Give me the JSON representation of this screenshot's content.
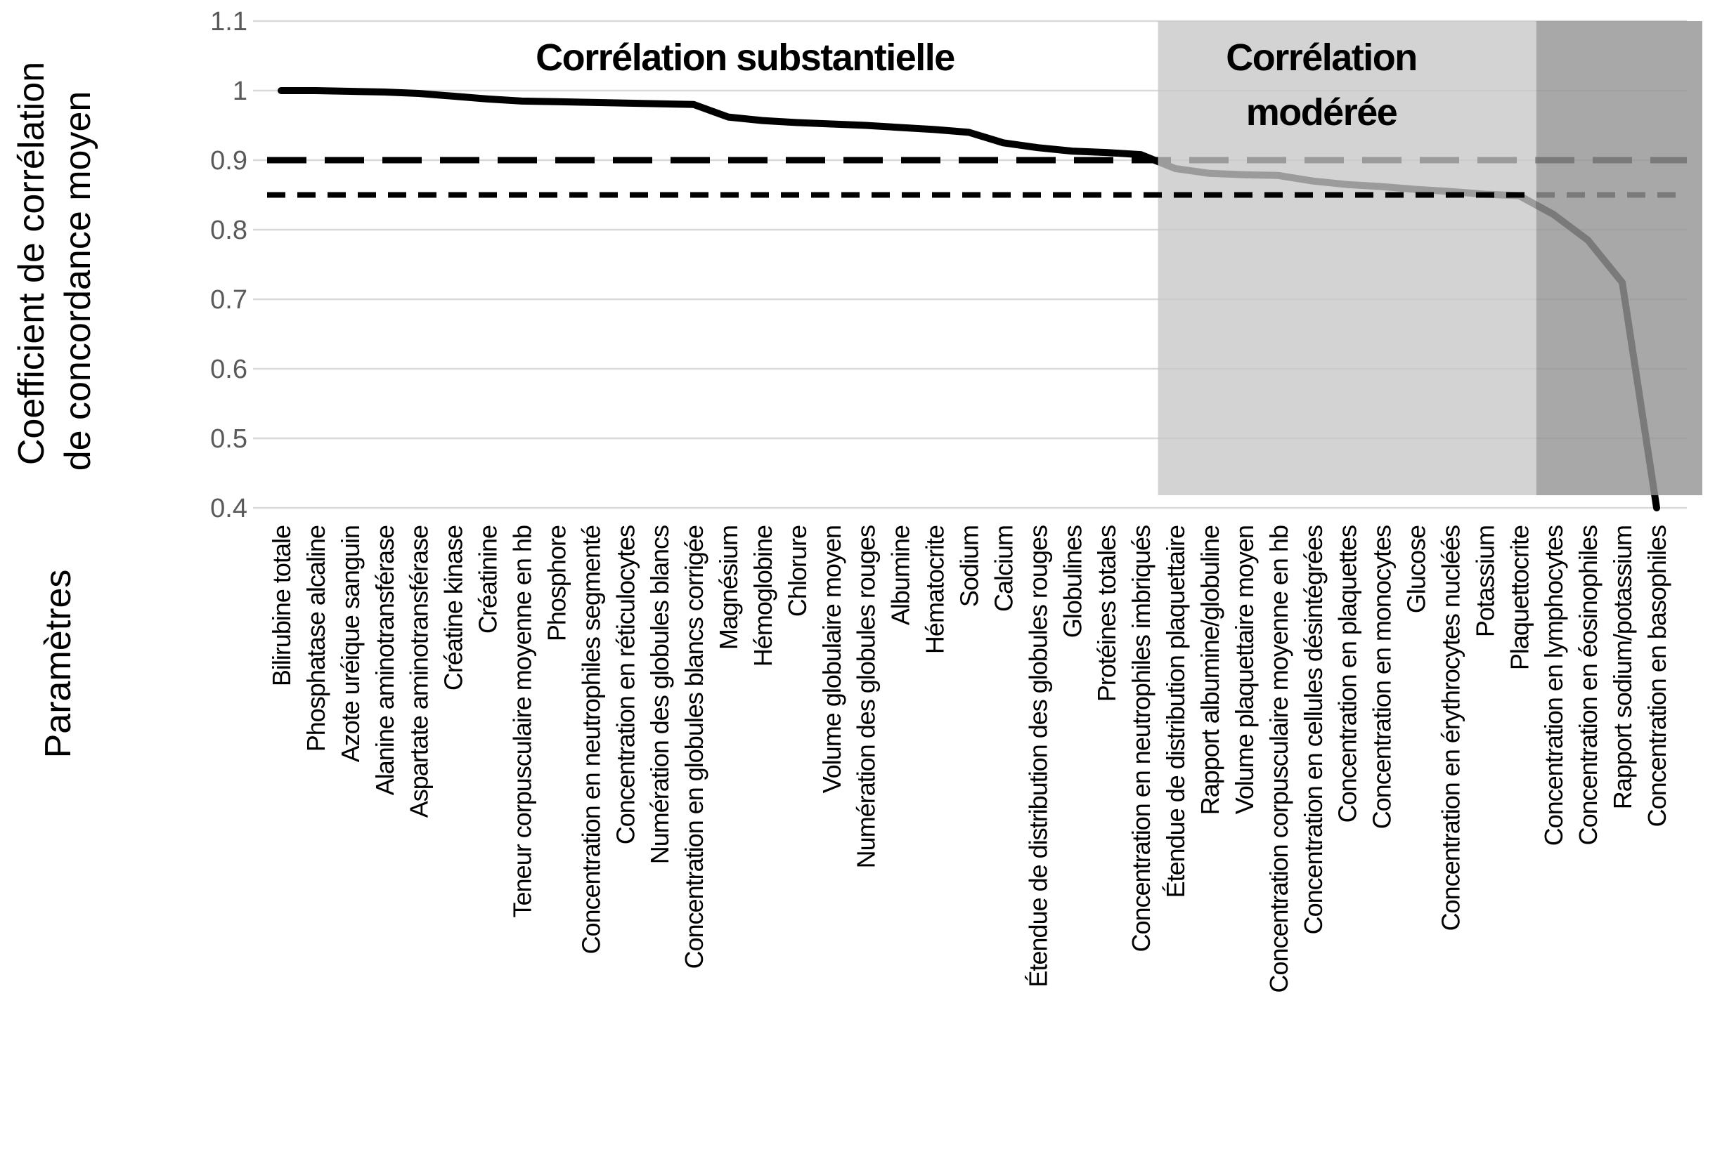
{
  "chart_data": {
    "type": "line",
    "title": "",
    "xlabel": "Paramètres",
    "ylabel": "Coefficient de corrélation de concordance moyen",
    "ylabel_lines": [
      "Coefficient de corrélation",
      "de concordance moyen"
    ],
    "ylim": [
      0.4,
      1.1
    ],
    "yticks": [
      "1.1",
      "1",
      "0.9",
      "0.8",
      "0.7",
      "0.6",
      "0.5",
      "0.4"
    ],
    "grid": true,
    "legend": false,
    "categories": [
      "Bilirubine totale",
      "Phosphatase alcaline",
      "Azote uréique sanguin",
      "Alanine aminotransférase",
      "Aspartate aminotransférase",
      "Créatine kinase",
      "Créatinine",
      "Teneur corpusculaire moyenne en hb",
      "Phosphore",
      "Concentration en neutrophiles segmenté",
      "Concentration en réticulocytes",
      "Numération des globules blancs",
      "Concentration en globules blancs corrigée",
      "Magnésium",
      "Hémoglobine",
      "Chlorure",
      "Volume globulaire moyen",
      "Numération des globules rouges",
      "Albumine",
      "Hématocrite",
      "Sodium",
      "Calcium",
      "Étendue de distribution des globules rouges",
      "Globulines",
      "Protéines totales",
      "Concentration en neutrophiles imbriqués",
      "Étendue de distribution plaquettaire",
      "Rapport albumine/globuline",
      "Volume plaquettaire moyen",
      "Concentration corpusculaire moyenne en hb",
      "Concentration en cellules désintégrées",
      "Concentration en plaquettes",
      "Concentration en monocytes",
      "Glucose",
      "Concentration en érythrocytes nucléés",
      "Potassium",
      "Plaquettocrite",
      "Concentration en lymphocytes",
      "Concentration en éosinophiles",
      "Rapport sodium/potassium",
      "Concentration en basophiles"
    ],
    "values": [
      1.0,
      1.0,
      0.999,
      0.998,
      0.996,
      0.992,
      0.988,
      0.985,
      0.984,
      0.983,
      0.982,
      0.981,
      0.98,
      0.962,
      0.957,
      0.954,
      0.952,
      0.95,
      0.947,
      0.944,
      0.94,
      0.925,
      0.918,
      0.913,
      0.911,
      0.908,
      0.888,
      0.881,
      0.879,
      0.878,
      0.87,
      0.865,
      0.862,
      0.858,
      0.855,
      0.851,
      0.849,
      0.822,
      0.785,
      0.724,
      0.4
    ],
    "thresholds": [
      {
        "value": 0.9,
        "style": "long-dash"
      },
      {
        "value": 0.85,
        "style": "short-dash"
      }
    ],
    "regions": [
      {
        "label": "Corrélation substantielle",
        "start_category": 1,
        "end_category": 26,
        "fill": "none"
      },
      {
        "label": "Corrélation modérée",
        "label_lines": [
          "Corrélation",
          "modérée"
        ],
        "start_category": 27,
        "end_category": 37,
        "fill": "moderate"
      },
      {
        "label": "",
        "start_category": 38,
        "end_category": 41,
        "fill": "dark"
      }
    ]
  },
  "colors": {
    "line": "#000000",
    "grid": "#d9d9d9",
    "tick_label": "#595959",
    "category_label": "#000000",
    "threshold": "#000000",
    "region_moderate_fill": "#c7c7c7",
    "region_moderate_opacity": 0.78,
    "region_dark_fill": "#959595",
    "region_dark_opacity": 0.82
  }
}
